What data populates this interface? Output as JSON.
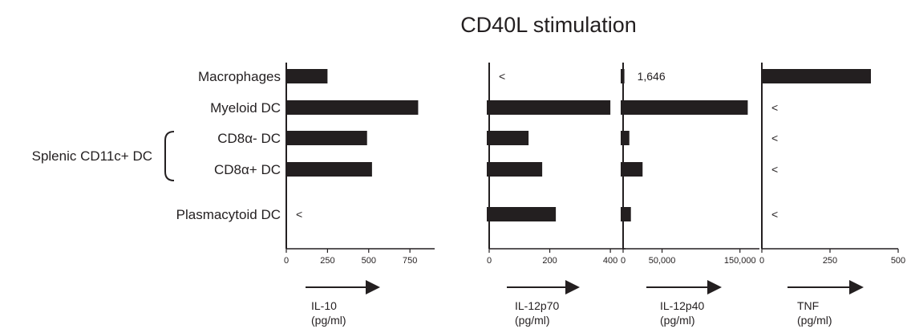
{
  "chart_data": {
    "type": "bar",
    "orientation": "horizontal",
    "title": "CD40L stimulation",
    "group_label": "Splenic CD11c+ DC",
    "categories": [
      "Macrophages",
      "Myeloid DC",
      "CD8α- DC",
      "CD8α+ DC",
      "Plasmacytoid DC"
    ],
    "panels": [
      {
        "name": "IL-10",
        "unit": "(pg/ml)",
        "xlim": [
          0,
          900
        ],
        "ticks": [
          0,
          250,
          500,
          750
        ],
        "tick_labels": [
          "0",
          "250",
          "500",
          "750"
        ],
        "values": [
          250,
          800,
          490,
          520,
          null
        ],
        "annotations": [
          "",
          "",
          "",
          "",
          "<"
        ]
      },
      {
        "name": "IL-12p70",
        "unit": "(pg/ml)",
        "xlim": [
          0,
          450
        ],
        "ticks": [
          0,
          200,
          400
        ],
        "tick_labels": [
          "0",
          "200",
          "400"
        ],
        "values": [
          null,
          400,
          130,
          175,
          220
        ],
        "annotations": [
          "<",
          "",
          "",
          "",
          ""
        ]
      },
      {
        "name": "IL-12p40",
        "unit": "(pg/ml)",
        "xlim": [
          0,
          175000
        ],
        "ticks": [
          0,
          50000,
          150000
        ],
        "tick_labels": [
          "0",
          "50,000",
          "150,000"
        ],
        "values": [
          1646,
          160000,
          8000,
          25000,
          10000
        ],
        "annotations": [
          "1,646",
          "",
          "",
          "",
          ""
        ]
      },
      {
        "name": "TNF",
        "unit": "(pg/ml)",
        "xlim": [
          0,
          500
        ],
        "ticks": [
          0,
          250,
          500
        ],
        "tick_labels": [
          "0",
          "250",
          "500"
        ],
        "values": [
          400,
          null,
          null,
          null,
          null
        ],
        "annotations": [
          "",
          "<",
          "<",
          "<",
          "<"
        ]
      }
    ],
    "colors": {
      "bar": "#231f20",
      "text": "#231f20"
    }
  }
}
